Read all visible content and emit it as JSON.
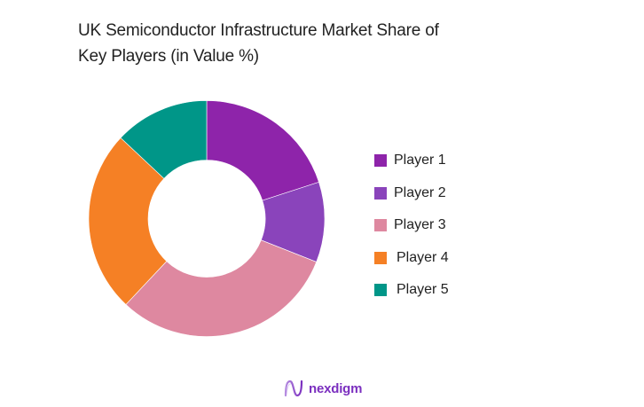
{
  "title": {
    "line1": "UK Semiconductor Infrastructure Market Share of",
    "line2": "Key Players (in Value %)"
  },
  "legend": [
    {
      "label": "Player 1",
      "color": "#8e24aa"
    },
    {
      "label": "Player 2",
      "color": "#8a44bb"
    },
    {
      "label": "Player 3",
      "color": "#de88a0"
    },
    {
      "label": "Player 4",
      "color": "#f58025"
    },
    {
      "label": "Player 5",
      "color": "#009688"
    }
  ],
  "brand": {
    "name": "nexdigm",
    "icon": "wave-logo-icon",
    "color": "#7b2fbf"
  },
  "chart_data": {
    "type": "pie",
    "variant": "donut",
    "title": "UK Semiconductor Infrastructure Market Share of Key Players (in Value %)",
    "categories": [
      "Player 1",
      "Player 2",
      "Player 3",
      "Player 4",
      "Player 5"
    ],
    "values": [
      20,
      11,
      31,
      25,
      13
    ],
    "unit": "%",
    "colors": [
      "#8e24aa",
      "#8a44bb",
      "#de88a0",
      "#f58025",
      "#009688"
    ],
    "start_angle": "12 o'clock, clockwise",
    "data_labels": false,
    "legend_position": "right"
  }
}
